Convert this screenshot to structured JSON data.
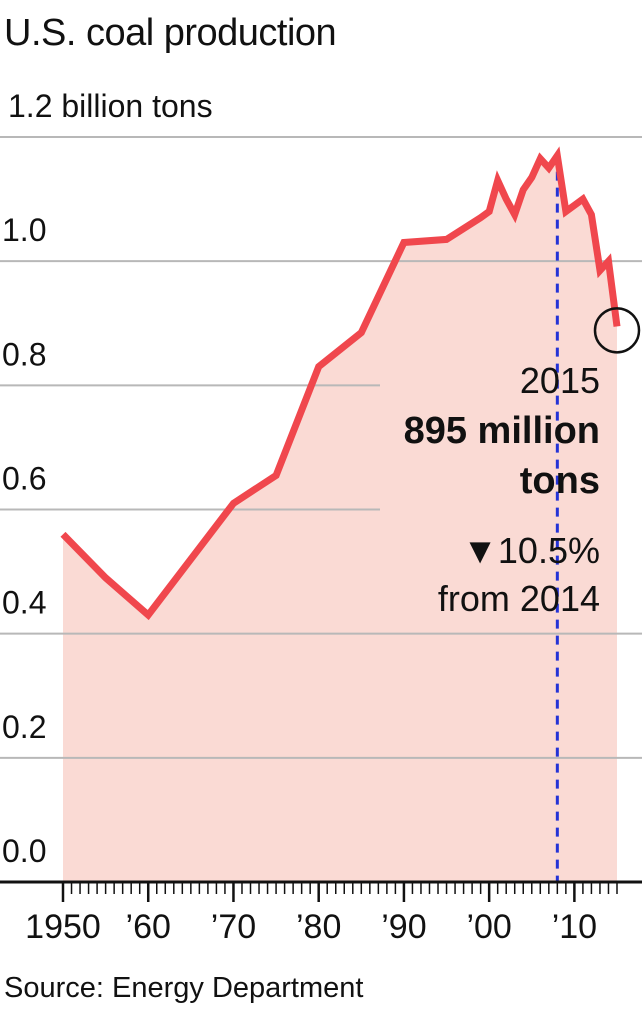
{
  "title": "U.S. coal production",
  "source": "Source: Energy Department",
  "colors": {
    "line": "#f0474d",
    "area": "#fadad4",
    "grid": "#b8b8b8",
    "marker": "#2433d6",
    "text": "#111111"
  },
  "annotation": {
    "year": "2015",
    "value": "895 million",
    "value_unit": "tons",
    "change": "▼10.5%",
    "change_note": "from 2014"
  },
  "chart_data": {
    "type": "area",
    "title": "U.S. coal production",
    "xlabel": "",
    "ylabel": "",
    "xlim": [
      1950,
      2015
    ],
    "ylim": [
      0,
      1.2
    ],
    "grid": true,
    "y_ticks": [
      0,
      0.2,
      0.4,
      0.6,
      0.8,
      1.0,
      1.2
    ],
    "y_tick_labels": [
      "0.0",
      "0.2",
      "0.4",
      "0.6",
      "0.8",
      "1.0",
      "1.2 billion tons"
    ],
    "x_ticks": [
      1950,
      1960,
      1970,
      1980,
      1990,
      2000,
      2010
    ],
    "x_tick_labels": [
      "1950",
      "’60",
      "’70",
      "’80",
      "’90",
      "’00",
      "’10"
    ],
    "reference_line_x": 2008,
    "highlight_point": [
      2015,
      0.895
    ],
    "series": [
      {
        "x": [
          1950,
          1955,
          1960,
          1965,
          1970,
          1975,
          1980,
          1985,
          1990,
          1995,
          1999,
          2000,
          2001,
          2002,
          2003,
          2004,
          2005,
          2006,
          2007,
          2008,
          2009,
          2010,
          2011,
          2012,
          2013,
          2014,
          2015
        ],
        "y": [
          0.56,
          0.49,
          0.43,
          0.52,
          0.61,
          0.655,
          0.83,
          0.885,
          1.03,
          1.035,
          1.07,
          1.08,
          1.13,
          1.1,
          1.075,
          1.115,
          1.135,
          1.165,
          1.15,
          1.17,
          1.08,
          1.09,
          1.1,
          1.075,
          0.985,
          1.0,
          0.895
        ]
      }
    ]
  }
}
